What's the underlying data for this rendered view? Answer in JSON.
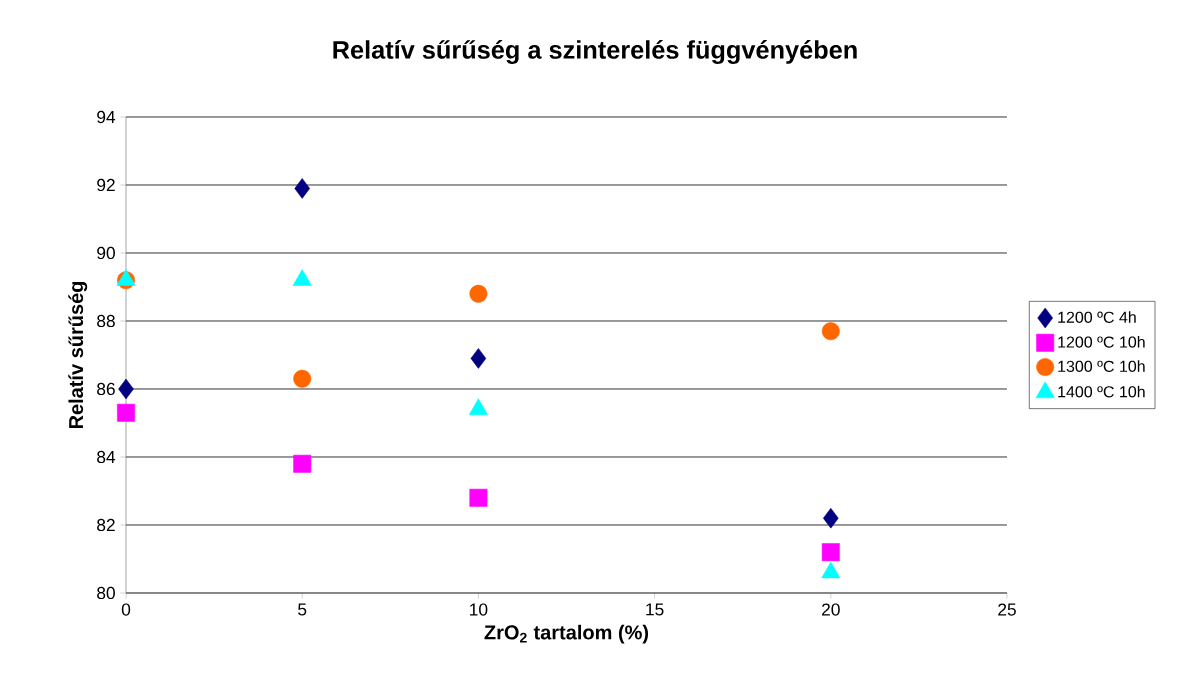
{
  "chart_data": {
    "type": "scatter",
    "title": "Relatív sűrűség a szinterelés függvényében",
    "xlabel": "ZrO$_{2}$ tartalom (%)",
    "ylabel": "Relatív sűrűség",
    "x": [
      0,
      5,
      10,
      20
    ],
    "series": [
      {
        "name": "1200 ºC 4h",
        "color": "#000080",
        "marker": "diamond",
        "values": [
          86.0,
          91.9,
          86.9,
          82.2
        ]
      },
      {
        "name": "1200 ºC 10h",
        "color": "#ff00ff",
        "marker": "square",
        "values": [
          85.3,
          83.8,
          82.8,
          81.2
        ]
      },
      {
        "name": "1300 ºC 10h",
        "color": "#ff6600",
        "marker": "circle",
        "values": [
          89.2,
          86.3,
          88.8,
          87.7
        ]
      },
      {
        "name": "1400 ºC 10h",
        "color": "#00ffff",
        "marker": "triangle",
        "values": [
          89.2,
          89.2,
          85.4,
          80.6
        ]
      }
    ],
    "xlim": [
      0,
      25
    ],
    "xticks": [
      0,
      5,
      10,
      15,
      20,
      25
    ],
    "ylim": [
      80,
      94
    ],
    "yticks": [
      80,
      82,
      84,
      86,
      88,
      90,
      92,
      94
    ],
    "grid": "y",
    "legend": "right"
  }
}
